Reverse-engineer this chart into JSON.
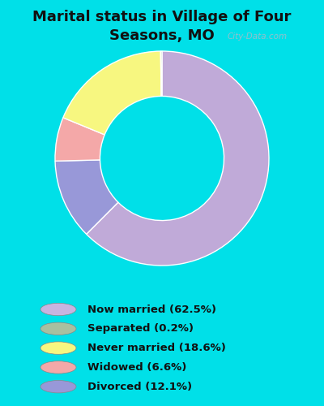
{
  "title": "Marital status in Village of Four\nSeasons, MO",
  "slices": [
    62.5,
    0.2,
    18.6,
    6.6,
    12.1
  ],
  "colors": [
    "#c0aad8",
    "#a8c8a0",
    "#f7f780",
    "#f4a8a8",
    "#9898d8"
  ],
  "labels": [
    "Now married (62.5%)",
    "Separated (0.2%)",
    "Never married (18.6%)",
    "Widowed (6.6%)",
    "Divorced (12.1%)"
  ],
  "legend_colors": [
    "#c8b4e0",
    "#a8c0a0",
    "#f7f780",
    "#f4a8a8",
    "#9898d8"
  ],
  "bg_outer": "#00e0e8",
  "bg_chart_color": "#d8ecd8",
  "title_fontsize": 13,
  "donut_width": 0.42,
  "startangle": 90,
  "watermark": "City-Data.com"
}
